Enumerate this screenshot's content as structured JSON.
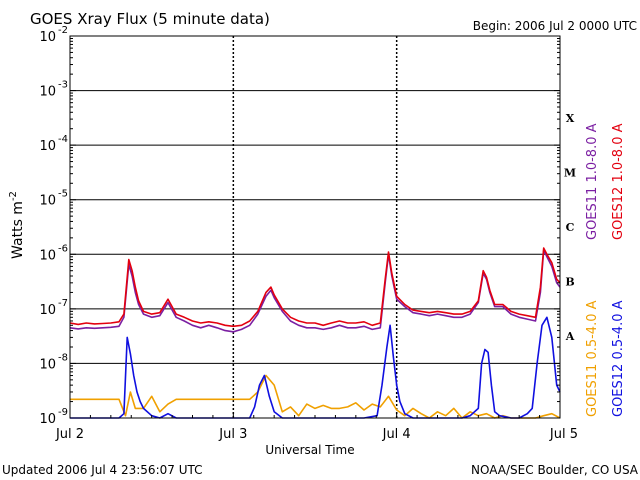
{
  "chart_data": {
    "type": "line",
    "title": "GOES Xray Flux (5 minute data)",
    "begin_label": "Begin:  2006 Jul 2 0000 UTC",
    "xlabel": "Universal Time",
    "ylabel": "Watts m",
    "ylabel_sup": "-2",
    "x_unit": "days since 2006 Jul 2 0000 UTC",
    "x_range": [
      0,
      3
    ],
    "y_scale": "log",
    "y_range": [
      1e-09,
      0.01
    ],
    "x_ticks": [
      {
        "value": 0,
        "label": "Jul 2"
      },
      {
        "value": 1,
        "label": "Jul 3"
      },
      {
        "value": 2,
        "label": "Jul 4"
      },
      {
        "value": 3,
        "label": "Jul 5"
      }
    ],
    "y_ticks": [
      {
        "exp": -9,
        "base": "10",
        "sup": "-9"
      },
      {
        "exp": -8,
        "base": "10",
        "sup": "-8"
      },
      {
        "exp": -7,
        "base": "10",
        "sup": "-7"
      },
      {
        "exp": -6,
        "base": "10",
        "sup": "-6"
      },
      {
        "exp": -5,
        "base": "10",
        "sup": "-5"
      },
      {
        "exp": -4,
        "base": "10",
        "sup": "-4"
      },
      {
        "exp": -3,
        "base": "10",
        "sup": "-3"
      },
      {
        "exp": -2,
        "base": "10",
        "sup": "-2"
      }
    ],
    "flare_classes": [
      {
        "label": "A",
        "exp": -7.5
      },
      {
        "label": "B",
        "exp": -6.5
      },
      {
        "label": "C",
        "exp": -5.5
      },
      {
        "label": "M",
        "exp": -4.5
      },
      {
        "label": "X",
        "exp": -3.5
      }
    ],
    "legend": [
      {
        "label": "GOES11 1.0-8.0 A",
        "color": "#7b1fa2"
      },
      {
        "label": "GOES12 1.0-8.0 A",
        "color": "#e3000f"
      },
      {
        "label": "GOES11 0.5-4.0 A",
        "color": "#f0a000"
      },
      {
        "label": "GOES12 0.5-4.0 A",
        "color": "#1010e0"
      }
    ],
    "series": [
      {
        "name": "GOES11 1.0-8.0 A",
        "color": "#7b1fa2",
        "x": [
          0,
          0.05,
          0.1,
          0.15,
          0.2,
          0.25,
          0.3,
          0.33,
          0.36,
          0.38,
          0.4,
          0.42,
          0.45,
          0.5,
          0.55,
          0.6,
          0.65,
          0.7,
          0.75,
          0.8,
          0.85,
          0.9,
          0.95,
          1.0,
          1.05,
          1.1,
          1.15,
          1.2,
          1.23,
          1.25,
          1.3,
          1.35,
          1.4,
          1.45,
          1.5,
          1.55,
          1.6,
          1.65,
          1.7,
          1.75,
          1.8,
          1.85,
          1.9,
          1.93,
          1.95,
          1.97,
          2.0,
          2.05,
          2.1,
          2.15,
          2.2,
          2.25,
          2.3,
          2.35,
          2.4,
          2.45,
          2.5,
          2.53,
          2.55,
          2.57,
          2.6,
          2.65,
          2.7,
          2.75,
          2.8,
          2.85,
          2.88,
          2.9,
          2.92,
          2.95,
          2.98,
          3.0
        ],
        "y": [
          4.5e-08,
          4.3e-08,
          4.5e-08,
          4.4e-08,
          4.5e-08,
          4.6e-08,
          4.8e-08,
          7e-08,
          6.5e-07,
          4e-07,
          2e-07,
          1.2e-07,
          8e-08,
          7e-08,
          7.5e-08,
          1.3e-07,
          7e-08,
          6e-08,
          5e-08,
          4.5e-08,
          5e-08,
          4.5e-08,
          4e-08,
          3.8e-08,
          4.2e-08,
          5e-08,
          8e-08,
          1.7e-07,
          2.2e-07,
          1.6e-07,
          9e-08,
          6e-08,
          5e-08,
          4.5e-08,
          4.5e-08,
          4.2e-08,
          4.5e-08,
          5e-08,
          4.5e-08,
          4.5e-08,
          4.8e-08,
          4.2e-08,
          4.5e-08,
          3e-07,
          1e-06,
          4e-07,
          1.5e-07,
          1.1e-07,
          8.5e-08,
          8e-08,
          7.5e-08,
          8e-08,
          7.5e-08,
          7e-08,
          7e-08,
          8e-08,
          1.3e-07,
          4.5e-07,
          3.5e-07,
          2e-07,
          1.1e-07,
          1.1e-07,
          8e-08,
          7e-08,
          6.5e-08,
          6e-08,
          2e-07,
          1.2e-06,
          9e-07,
          6e-07,
          3e-07,
          2.5e-07
        ]
      },
      {
        "name": "GOES12 1.0-8.0 A",
        "color": "#e3000f",
        "x": [
          0,
          0.05,
          0.1,
          0.15,
          0.2,
          0.25,
          0.3,
          0.33,
          0.36,
          0.38,
          0.4,
          0.42,
          0.45,
          0.5,
          0.55,
          0.6,
          0.65,
          0.7,
          0.75,
          0.8,
          0.85,
          0.9,
          0.95,
          1.0,
          1.05,
          1.1,
          1.15,
          1.2,
          1.23,
          1.25,
          1.3,
          1.35,
          1.4,
          1.45,
          1.5,
          1.55,
          1.6,
          1.65,
          1.7,
          1.75,
          1.8,
          1.85,
          1.9,
          1.93,
          1.95,
          1.97,
          2.0,
          2.05,
          2.1,
          2.15,
          2.2,
          2.25,
          2.3,
          2.35,
          2.4,
          2.45,
          2.5,
          2.53,
          2.55,
          2.57,
          2.6,
          2.65,
          2.7,
          2.75,
          2.8,
          2.85,
          2.88,
          2.9,
          2.92,
          2.95,
          2.98,
          3.0
        ],
        "y": [
          5.5e-08,
          5.2e-08,
          5.5e-08,
          5.3e-08,
          5.4e-08,
          5.5e-08,
          5.8e-08,
          8e-08,
          8e-07,
          5e-07,
          2.5e-07,
          1.4e-07,
          9e-08,
          8e-08,
          8.5e-08,
          1.5e-07,
          8e-08,
          7e-08,
          6e-08,
          5.5e-08,
          5.8e-08,
          5.5e-08,
          5e-08,
          4.8e-08,
          5e-08,
          6e-08,
          9e-08,
          2e-07,
          2.5e-07,
          1.8e-07,
          1e-07,
          7e-08,
          6e-08,
          5.5e-08,
          5.5e-08,
          5e-08,
          5.5e-08,
          6e-08,
          5.5e-08,
          5.5e-08,
          5.8e-08,
          5e-08,
          5.5e-08,
          3.5e-07,
          1.1e-06,
          4.5e-07,
          1.7e-07,
          1.2e-07,
          9.5e-08,
          9e-08,
          8.5e-08,
          9e-08,
          8.5e-08,
          8e-08,
          8e-08,
          9e-08,
          1.4e-07,
          5e-07,
          3.8e-07,
          2.2e-07,
          1.2e-07,
          1.2e-07,
          9e-08,
          8e-08,
          7.5e-08,
          7e-08,
          2.5e-07,
          1.3e-06,
          1e-06,
          7e-07,
          3.5e-07,
          3e-07
        ]
      },
      {
        "name": "GOES11 0.5-4.0 A",
        "color": "#f0a000",
        "x": [
          0,
          0.05,
          0.1,
          0.15,
          0.2,
          0.25,
          0.3,
          0.34,
          0.37,
          0.4,
          0.45,
          0.5,
          0.55,
          0.6,
          0.65,
          0.7,
          0.75,
          0.8,
          0.85,
          0.9,
          0.95,
          1.0,
          1.05,
          1.1,
          1.15,
          1.2,
          1.25,
          1.3,
          1.35,
          1.4,
          1.45,
          1.5,
          1.55,
          1.6,
          1.65,
          1.7,
          1.75,
          1.8,
          1.85,
          1.9,
          1.95,
          2.0,
          2.05,
          2.1,
          2.15,
          2.2,
          2.25,
          2.3,
          2.35,
          2.4,
          2.45,
          2.5,
          2.55,
          2.6,
          2.65,
          2.7,
          2.75,
          2.8,
          2.85,
          2.9,
          2.95,
          3.0
        ],
        "y": [
          2.2e-09,
          2.2e-09,
          2.2e-09,
          2.2e-09,
          2.2e-09,
          2.2e-09,
          2.2e-09,
          1.1e-09,
          3e-09,
          1.5e-09,
          1.5e-09,
          2.5e-09,
          1.3e-09,
          1.8e-09,
          2.2e-09,
          2.2e-09,
          2.2e-09,
          2.2e-09,
          2.2e-09,
          2.2e-09,
          2.2e-09,
          2.2e-09,
          2.2e-09,
          2.2e-09,
          3e-09,
          6e-09,
          4e-09,
          1.3e-09,
          1.6e-09,
          1.1e-09,
          1.8e-09,
          1.5e-09,
          1.7e-09,
          1.5e-09,
          1.5e-09,
          1.6e-09,
          1.9e-09,
          1.4e-09,
          1.8e-09,
          1.6e-09,
          2.5e-09,
          1.4e-09,
          1.1e-09,
          1.5e-09,
          1.2e-09,
          1e-09,
          1.3e-09,
          1.1e-09,
          1.5e-09,
          1e-09,
          1.3e-09,
          1.1e-09,
          1.2e-09,
          1e-09,
          1.1e-09,
          1e-09,
          1e-09,
          1e-09,
          1e-09,
          1.1e-09,
          1.2e-09,
          1e-09
        ]
      },
      {
        "name": "GOES12 0.5-4.0 A",
        "color": "#1010e0",
        "x": [
          0,
          0.1,
          0.2,
          0.3,
          0.33,
          0.35,
          0.37,
          0.39,
          0.41,
          0.43,
          0.45,
          0.5,
          0.55,
          0.6,
          0.65,
          0.7,
          0.8,
          0.9,
          1.0,
          1.1,
          1.13,
          1.16,
          1.19,
          1.22,
          1.25,
          1.3,
          1.4,
          1.5,
          1.6,
          1.7,
          1.8,
          1.88,
          1.91,
          1.94,
          1.96,
          1.98,
          2.0,
          2.02,
          2.05,
          2.1,
          2.2,
          2.3,
          2.4,
          2.45,
          2.5,
          2.52,
          2.54,
          2.56,
          2.58,
          2.6,
          2.63,
          2.7,
          2.75,
          2.8,
          2.83,
          2.86,
          2.89,
          2.92,
          2.95,
          2.98,
          3.0
        ],
        "y": [
          1e-09,
          1e-09,
          1e-09,
          1e-09,
          1.2e-09,
          3e-08,
          1.5e-08,
          6e-09,
          3e-09,
          2e-09,
          1.5e-09,
          1.1e-09,
          1e-09,
          1.2e-09,
          1e-09,
          1e-09,
          1e-09,
          1e-09,
          1e-09,
          1e-09,
          1.6e-09,
          4e-09,
          6e-09,
          2.5e-09,
          1.3e-09,
          1e-09,
          1e-09,
          1e-09,
          1e-09,
          1e-09,
          1e-09,
          1.1e-09,
          4e-09,
          2e-08,
          5e-08,
          1.3e-08,
          4e-09,
          2e-09,
          1.2e-09,
          1e-09,
          1e-09,
          1e-09,
          1e-09,
          1.1e-09,
          1.5e-09,
          1e-08,
          1.8e-08,
          1.6e-08,
          4e-09,
          1.3e-09,
          1.1e-09,
          1e-09,
          1e-09,
          1.2e-09,
          1.5e-09,
          1e-08,
          5e-08,
          7e-08,
          3e-08,
          4e-09,
          3e-09
        ]
      }
    ]
  },
  "footer": {
    "updated": "Updated 2006 Jul  4 23:56:07 UTC",
    "credit": "NOAA/SEC Boulder, CO USA"
  }
}
